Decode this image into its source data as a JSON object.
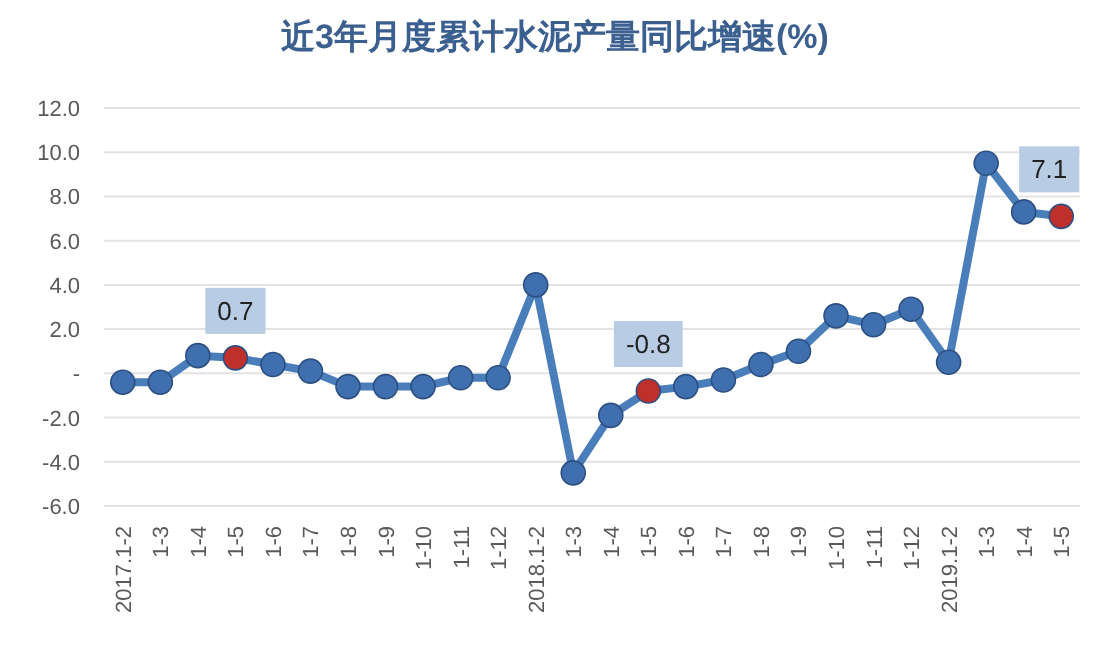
{
  "chart_data": {
    "type": "line",
    "title": "近3年月度累计水泥产量同比增速(%)",
    "categories": [
      "2017.1-2",
      "1-3",
      "1-4",
      "1-5",
      "1-6",
      "1-7",
      "1-8",
      "1-9",
      "1-10",
      "1-11",
      "1-12",
      "2018.1-2",
      "1-3",
      "1-4",
      "1-5",
      "1-6",
      "1-7",
      "1-8",
      "1-9",
      "1-10",
      "1-11",
      "1-12",
      "2019.1-2",
      "1-3",
      "1-4",
      "1-5"
    ],
    "series": [
      {
        "color": "#4a7ebb",
        "colors": [
          "#3f6fae",
          "#3f6fae",
          "#3f6fae",
          "#c0302a",
          "#3f6fae",
          "#3f6fae",
          "#3f6fae",
          "#3f6fae",
          "#3f6fae",
          "#3f6fae",
          "#3f6fae",
          "#3f6fae",
          "#3f6fae",
          "#3f6fae",
          "#c0302a",
          "#3f6fae",
          "#3f6fae",
          "#3f6fae",
          "#3f6fae",
          "#3f6fae",
          "#3f6fae",
          "#3f6fae",
          "#3f6fae",
          "#3f6fae",
          "#3f6fae",
          "#c0302a"
        ],
        "values": [
          -0.4,
          -0.4,
          0.8,
          0.7,
          0.4,
          0.1,
          -0.6,
          -0.6,
          -0.6,
          -0.2,
          -0.2,
          4.0,
          -4.5,
          -1.9,
          -0.8,
          -0.6,
          -0.3,
          0.4,
          1.0,
          2.6,
          2.2,
          2.9,
          0.5,
          9.5,
          7.3,
          7.1
        ],
        "value_labels": [
          null,
          null,
          null,
          "0.7",
          null,
          null,
          null,
          null,
          null,
          null,
          null,
          null,
          null,
          null,
          "-0.8",
          null,
          null,
          null,
          null,
          null,
          null,
          null,
          null,
          null,
          null,
          "7.1"
        ]
      }
    ],
    "ylim": [
      -6,
      12
    ],
    "yticks": [
      {
        "value": -6,
        "label": "-6.0"
      },
      {
        "value": -4,
        "label": "-4.0"
      },
      {
        "value": -2,
        "label": "-2.0"
      },
      {
        "value": 0,
        "label": "-"
      },
      {
        "value": 2,
        "label": "2.0"
      },
      {
        "value": 4,
        "label": "4.0"
      },
      {
        "value": 6,
        "label": "6.0"
      },
      {
        "value": 8,
        "label": "8.0"
      },
      {
        "value": 10,
        "label": "10.0"
      },
      {
        "value": 12,
        "label": "12.0"
      }
    ],
    "grid": "y",
    "marker": "circle",
    "line_style": "solid"
  }
}
